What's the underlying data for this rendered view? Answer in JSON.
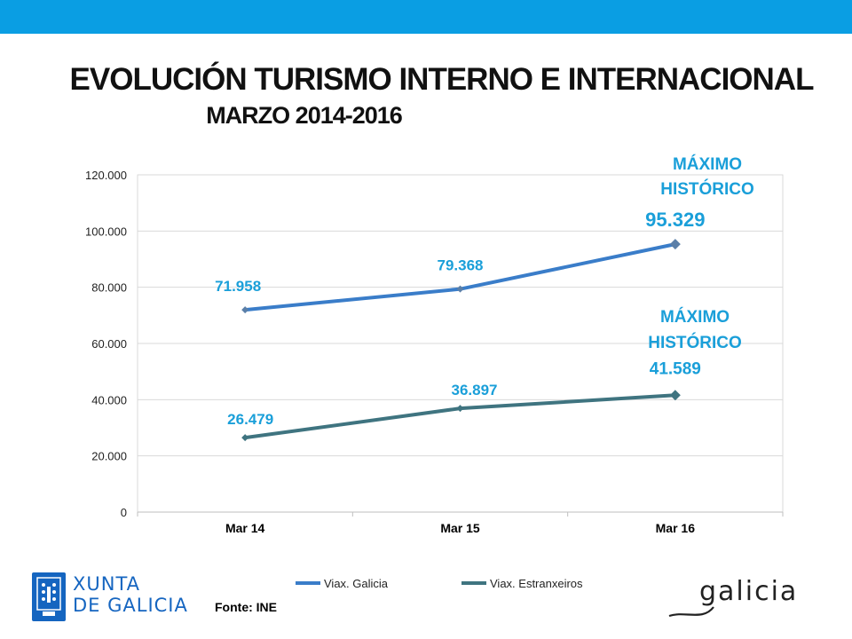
{
  "header": {
    "title": "EVOLUCIÓN TURISMO INTERNO E INTERNACIONAL",
    "subtitle": "MARZO 2014-2016"
  },
  "chart_data": {
    "type": "line",
    "categories": [
      "Mar 14",
      "Mar 15",
      "Mar 16"
    ],
    "series": [
      {
        "name": "Viax. Galicia",
        "values": [
          71958,
          79368,
          95329
        ],
        "color": "#3a7dc9",
        "labels": [
          "71.958",
          "79.368",
          "95.329"
        ],
        "marker": "diamond"
      },
      {
        "name": "Viax. Estranxeiros",
        "values": [
          26479,
          36897,
          41589
        ],
        "color": "#3f7480",
        "labels": [
          "26.479",
          "36.897",
          "41.589"
        ],
        "marker": "diamond"
      }
    ],
    "ylim": [
      0,
      120000
    ],
    "yticks": [
      0,
      20000,
      40000,
      60000,
      80000,
      100000,
      120000
    ],
    "ytick_labels": [
      "0",
      "20.000",
      "40.000",
      "60.000",
      "80.000",
      "100.000",
      "120.000"
    ],
    "grid": true,
    "legend": "bottom",
    "annotation_text": "MÁXIMO HISTÓRICO",
    "label_color": "#1a9fd9"
  },
  "footer": {
    "source": "Fonte: INE",
    "logo_left_line1": "XUNTA",
    "logo_left_line2": "DE GALICIA",
    "logo_right": "galicia"
  }
}
